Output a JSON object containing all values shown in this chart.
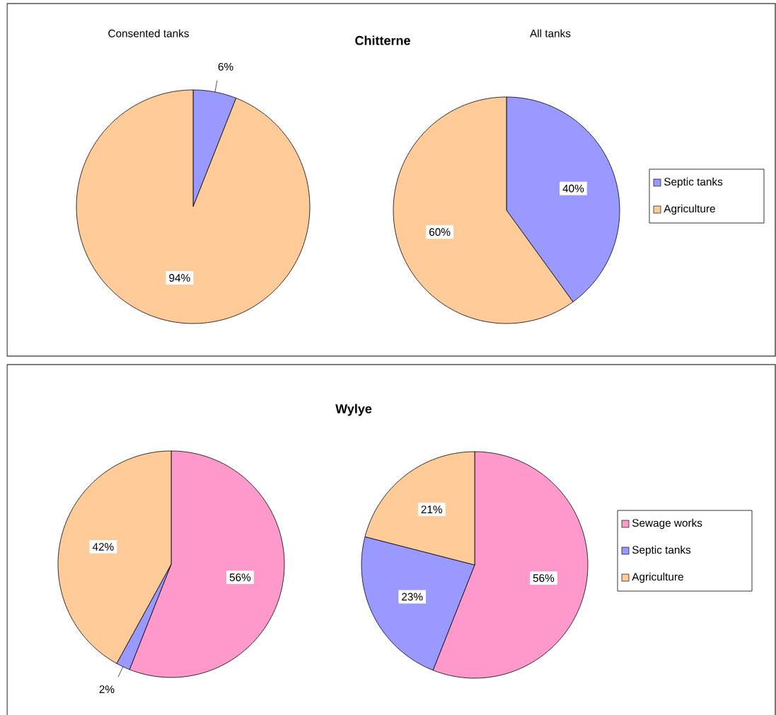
{
  "chart_data": [
    {
      "type": "pie",
      "title": "Chitterne",
      "subtitle": "Consented tanks",
      "categories": [
        null,
        null
      ],
      "values": [
        6,
        94
      ],
      "colors": [
        "#9999ff",
        "#ffcc99"
      ],
      "value_labels": [
        "6%",
        "94%"
      ]
    },
    {
      "type": "pie",
      "subtitle": "All tanks",
      "categories": [
        "Septic tanks",
        "Agriculture"
      ],
      "values": [
        40,
        60
      ],
      "colors": [
        "#9999ff",
        "#ffcc99"
      ],
      "value_labels": [
        "40%",
        "60%"
      ],
      "legend": "right"
    },
    {
      "type": "pie",
      "title": "Wylye",
      "categories": [
        null,
        null,
        null
      ],
      "values": [
        56,
        2,
        42
      ],
      "colors": [
        "#ff99cc",
        "#9999ff",
        "#ffcc99"
      ],
      "value_labels": [
        "56%",
        "2%",
        "42%"
      ]
    },
    {
      "type": "pie",
      "categories": [
        "Sewage works",
        "Septic tanks",
        "Agriculture"
      ],
      "values": [
        56,
        23,
        21
      ],
      "colors": [
        "#ff99cc",
        "#9999ff",
        "#ffcc99"
      ],
      "value_labels": [
        "56%",
        "23%",
        "21%"
      ],
      "legend": "right"
    }
  ]
}
